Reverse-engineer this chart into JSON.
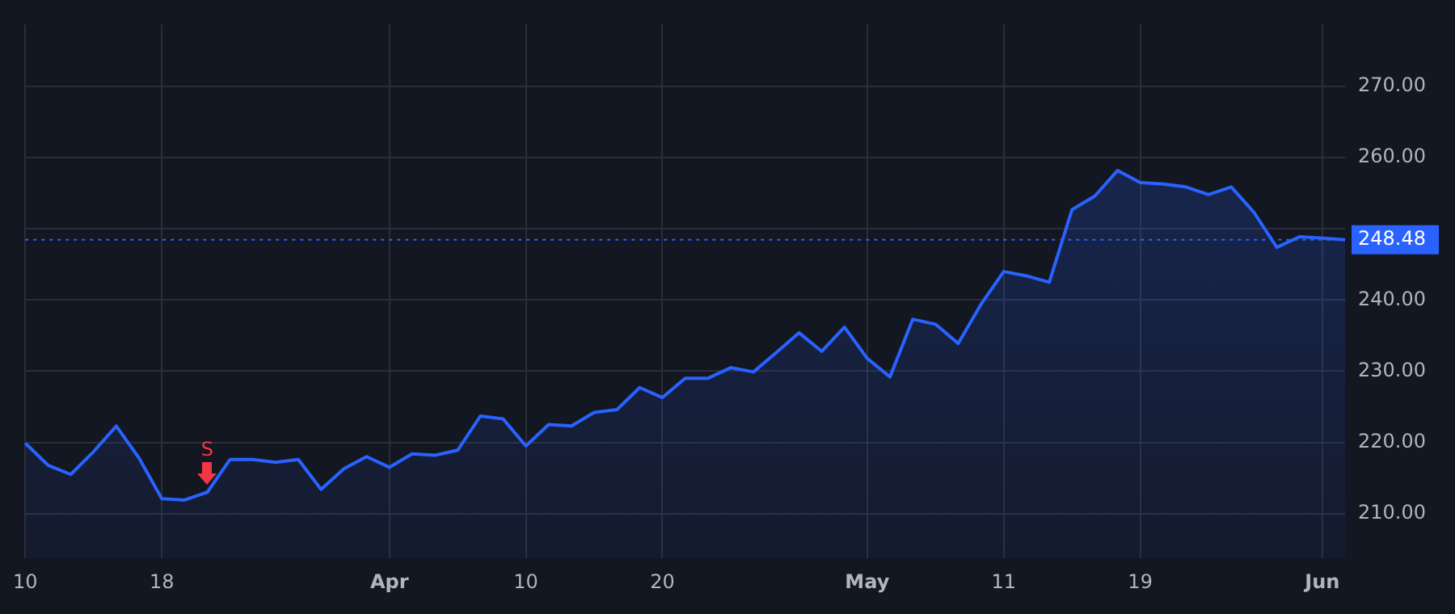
{
  "chart_data": {
    "type": "area",
    "categories": [
      "10",
      null,
      null,
      null,
      null,
      null,
      "18",
      null,
      null,
      null,
      null,
      null,
      null,
      null,
      null,
      null,
      "Apr",
      null,
      null,
      null,
      null,
      null,
      "10",
      null,
      null,
      null,
      null,
      null,
      "20",
      null,
      null,
      null,
      null,
      null,
      null,
      null,
      null,
      "May",
      null,
      null,
      null,
      null,
      null,
      "11",
      null,
      null,
      null,
      null,
      null,
      "19",
      null,
      null,
      null,
      null,
      null,
      null,
      null,
      "Jun",
      null
    ],
    "series": [
      {
        "color": "#2962ff",
        "values": [
          219.9,
          216.8,
          215.5,
          218.7,
          222.3,
          217.8,
          212.1,
          211.9,
          213.0,
          217.6,
          217.6,
          217.2,
          217.6,
          213.4,
          216.3,
          218.0,
          216.5,
          218.4,
          218.2,
          218.9,
          223.7,
          223.3,
          219.5,
          222.5,
          222.3,
          224.2,
          224.6,
          227.7,
          226.3,
          229.0,
          229.0,
          230.5,
          229.9,
          232.6,
          235.4,
          232.8,
          236.2,
          231.8,
          229.2,
          237.3,
          236.6,
          233.9,
          239.4,
          244.0,
          243.4,
          242.5,
          252.7,
          254.6,
          258.2,
          256.5,
          256.3,
          255.9,
          254.8,
          255.9,
          252.3,
          247.4,
          248.9,
          248.7,
          248.48
        ]
      }
    ],
    "ylim": [
      203.7,
      278.7
    ],
    "yticks": [
      {
        "value": 210,
        "label": "210.00"
      },
      {
        "value": 220,
        "label": "220.00"
      },
      {
        "value": 230,
        "label": "230.00"
      },
      {
        "value": 240,
        "label": "240.00"
      },
      {
        "value": 250,
        "label": null
      },
      {
        "value": 260,
        "label": "260.00"
      },
      {
        "value": 270,
        "label": "270.00"
      }
    ],
    "ref_lines": [
      {
        "axis": "y",
        "value": 248.48,
        "label": "248.48",
        "color": "#2962ff",
        "line_style": "dotted"
      }
    ],
    "annotations": [
      {
        "text": "S",
        "y": 213.0
      }
    ],
    "grid": true,
    "legend": false
  }
}
